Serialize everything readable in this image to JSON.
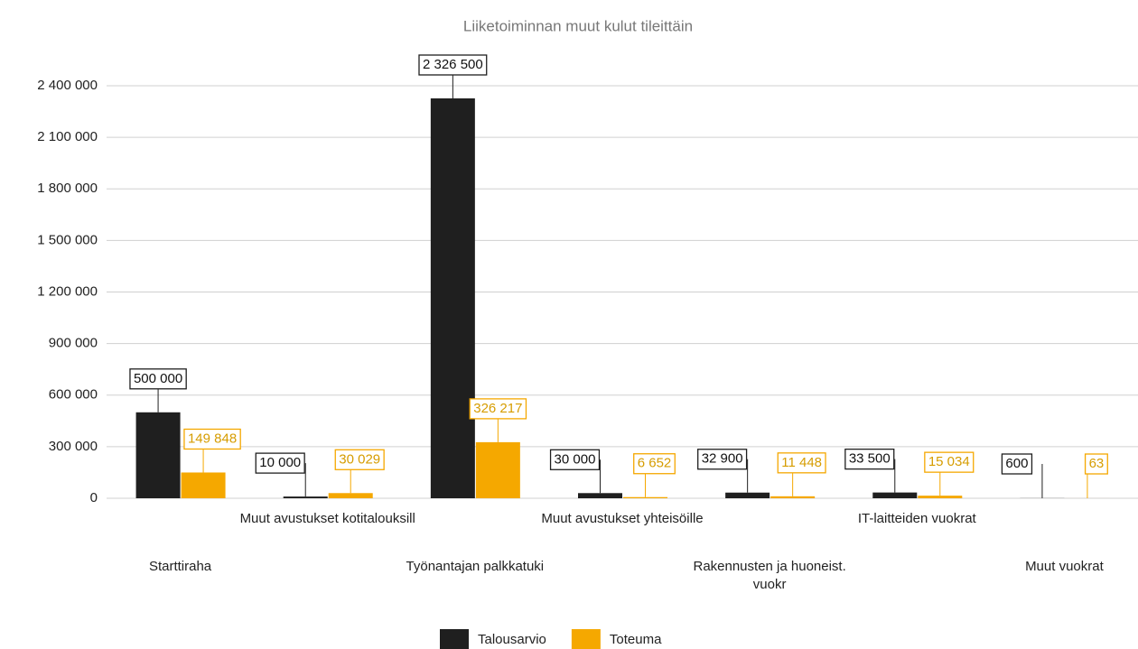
{
  "chart_data": {
    "type": "bar",
    "title": "Liiketoiminnan muut kulut tileittäin",
    "categories": [
      "Starttiraha",
      "Muut avustukset kotitalouksill",
      "Työnantajan palkkatuki",
      "Muut avustukset yhteisöille",
      "Rakennusten ja huoneist. vuokr",
      "IT-laitteiden vuokrat",
      "Muut vuokrat"
    ],
    "series": [
      {
        "name": "Talousarvio",
        "color": "#1f1f1f",
        "values": [
          500000,
          10000,
          2326500,
          30000,
          32900,
          33500,
          600
        ],
        "value_labels": [
          "500 000",
          "10 000",
          "2 326 500",
          "30 000",
          "32 900",
          "33 500",
          "600"
        ]
      },
      {
        "name": "Toteuma",
        "color": "#f5a800",
        "values": [
          149848,
          30029,
          326217,
          6652,
          11448,
          15034,
          63
        ],
        "value_labels": [
          "149 848",
          "30 029",
          "326 217",
          "6 652",
          "11 448",
          "15 034",
          "63"
        ]
      }
    ],
    "ylim": [
      0,
      2400000
    ],
    "yticks": [
      0,
      {
        "value": 300000,
        "label": "300 000"
      },
      {
        "value": 600000,
        "label": "600 000"
      },
      {
        "value": 900000,
        "label": "900 000"
      },
      {
        "value": 1200000,
        "label": "1 200 000"
      },
      {
        "value": 1500000,
        "label": "1 500 000"
      },
      {
        "value": 1800000,
        "label": "1 800 000"
      },
      {
        "value": 2100000,
        "label": "2 100 000"
      },
      {
        "value": 2400000,
        "label": "2 400 000"
      }
    ],
    "grid": true
  }
}
